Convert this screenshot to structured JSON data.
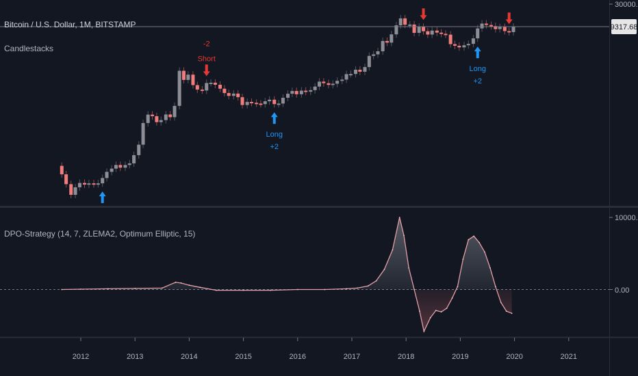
{
  "chart_data": [
    {
      "type": "candlestick",
      "title": "Bitcoin / U.S. Dollar, 1M, BITSTAMP",
      "subtitle": "Candlestacks",
      "scale": "log",
      "y_ticks": [
        {
          "value": 30000,
          "label": "30000.00"
        }
      ],
      "last_price": {
        "value": 9317.68,
        "label": "9317.68"
      },
      "candles": [
        {
          "date": "2011.65",
          "open": 12,
          "close": 8
        },
        {
          "date": "2011.73",
          "open": 8,
          "close": 5
        },
        {
          "date": "2011.82",
          "open": 5,
          "close": 3
        },
        {
          "date": "2011.90",
          "open": 3,
          "close": 4.3
        },
        {
          "date": "2011.98",
          "open": 4.3,
          "close": 5.3
        },
        {
          "date": "2012.07",
          "open": 5.3,
          "close": 4.9
        },
        {
          "date": "2012.15",
          "open": 4.9,
          "close": 5.2
        },
        {
          "date": "2012.24",
          "open": 5.2,
          "close": 5.0
        },
        {
          "date": "2012.32",
          "open": 5.0,
          "close": 5.2
        },
        {
          "date": "2012.40",
          "open": 5.2,
          "close": 6.7
        },
        {
          "date": "2012.48",
          "open": 6.7,
          "close": 9
        },
        {
          "date": "2012.57",
          "open": 9,
          "close": 10.5
        },
        {
          "date": "2012.65",
          "open": 10.5,
          "close": 12.5
        },
        {
          "date": "2012.73",
          "open": 12.5,
          "close": 11
        },
        {
          "date": "2012.82",
          "open": 11,
          "close": 12.5
        },
        {
          "date": "2012.90",
          "open": 12.5,
          "close": 13.5
        },
        {
          "date": "2012.98",
          "open": 13.5,
          "close": 20
        },
        {
          "date": "2013.07",
          "open": 20,
          "close": 33
        },
        {
          "date": "2013.15",
          "open": 33,
          "close": 93
        },
        {
          "date": "2013.24",
          "open": 93,
          "close": 139
        },
        {
          "date": "2013.32",
          "open": 139,
          "close": 129
        },
        {
          "date": "2013.40",
          "open": 129,
          "close": 97
        },
        {
          "date": "2013.48",
          "open": 97,
          "close": 107
        },
        {
          "date": "2013.57",
          "open": 107,
          "close": 140
        },
        {
          "date": "2013.65",
          "open": 140,
          "close": 123
        },
        {
          "date": "2013.73",
          "open": 123,
          "close": 211
        },
        {
          "date": "2013.82",
          "open": 211,
          "close": 1130
        },
        {
          "date": "2013.90",
          "open": 1130,
          "close": 730
        },
        {
          "date": "2013.98",
          "open": 730,
          "close": 940
        },
        {
          "date": "2014.07",
          "open": 940,
          "close": 570
        },
        {
          "date": "2014.15",
          "open": 570,
          "close": 460
        },
        {
          "date": "2014.24",
          "open": 460,
          "close": 440
        },
        {
          "date": "2014.32",
          "open": 440,
          "close": 630
        },
        {
          "date": "2014.40",
          "open": 630,
          "close": 640
        },
        {
          "date": "2014.48",
          "open": 640,
          "close": 580
        },
        {
          "date": "2014.57",
          "open": 580,
          "close": 480
        },
        {
          "date": "2014.65",
          "open": 480,
          "close": 390
        },
        {
          "date": "2014.73",
          "open": 390,
          "close": 340
        },
        {
          "date": "2014.82",
          "open": 340,
          "close": 380
        },
        {
          "date": "2014.90",
          "open": 380,
          "close": 320
        },
        {
          "date": "2014.98",
          "open": 320,
          "close": 220
        },
        {
          "date": "2015.07",
          "open": 220,
          "close": 255
        },
        {
          "date": "2015.15",
          "open": 255,
          "close": 245
        },
        {
          "date": "2015.24",
          "open": 245,
          "close": 236
        },
        {
          "date": "2015.32",
          "open": 236,
          "close": 230
        },
        {
          "date": "2015.40",
          "open": 230,
          "close": 263
        },
        {
          "date": "2015.48",
          "open": 263,
          "close": 284
        },
        {
          "date": "2015.57",
          "open": 284,
          "close": 230
        },
        {
          "date": "2015.65",
          "open": 230,
          "close": 236
        },
        {
          "date": "2015.73",
          "open": 236,
          "close": 311
        },
        {
          "date": "2015.82",
          "open": 311,
          "close": 377
        },
        {
          "date": "2015.90",
          "open": 377,
          "close": 430
        },
        {
          "date": "2015.98",
          "open": 430,
          "close": 368
        },
        {
          "date": "2016.07",
          "open": 368,
          "close": 437
        },
        {
          "date": "2016.15",
          "open": 437,
          "close": 416
        },
        {
          "date": "2016.24",
          "open": 416,
          "close": 448
        },
        {
          "date": "2016.32",
          "open": 448,
          "close": 531
        },
        {
          "date": "2016.40",
          "open": 531,
          "close": 673
        },
        {
          "date": "2016.48",
          "open": 673,
          "close": 624
        },
        {
          "date": "2016.57",
          "open": 624,
          "close": 575
        },
        {
          "date": "2016.65",
          "open": 575,
          "close": 609
        },
        {
          "date": "2016.73",
          "open": 609,
          "close": 700
        },
        {
          "date": "2016.82",
          "open": 700,
          "close": 742
        },
        {
          "date": "2016.90",
          "open": 742,
          "close": 963
        },
        {
          "date": "2016.98",
          "open": 963,
          "close": 970
        },
        {
          "date": "2017.07",
          "open": 970,
          "close": 1190
        },
        {
          "date": "2017.15",
          "open": 1190,
          "close": 1080
        },
        {
          "date": "2017.24",
          "open": 1080,
          "close": 1350
        },
        {
          "date": "2017.32",
          "open": 1350,
          "close": 2300
        },
        {
          "date": "2017.40",
          "open": 2300,
          "close": 2480
        },
        {
          "date": "2017.48",
          "open": 2480,
          "close": 2870
        },
        {
          "date": "2017.57",
          "open": 2870,
          "close": 4700
        },
        {
          "date": "2017.65",
          "open": 4700,
          "close": 4340
        },
        {
          "date": "2017.73",
          "open": 4340,
          "close": 6450
        },
        {
          "date": "2017.82",
          "open": 6450,
          "close": 9950
        },
        {
          "date": "2017.90",
          "open": 9950,
          "close": 13850
        },
        {
          "date": "2017.98",
          "open": 13850,
          "close": 10230
        },
        {
          "date": "2018.07",
          "open": 10230,
          "close": 10330
        },
        {
          "date": "2018.15",
          "open": 10330,
          "close": 6930
        },
        {
          "date": "2018.24",
          "open": 6930,
          "close": 9240
        },
        {
          "date": "2018.32",
          "open": 9240,
          "close": 7490
        },
        {
          "date": "2018.40",
          "open": 7490,
          "close": 6390
        },
        {
          "date": "2018.48",
          "open": 6390,
          "close": 7730
        },
        {
          "date": "2018.57",
          "open": 7730,
          "close": 7010
        },
        {
          "date": "2018.65",
          "open": 7010,
          "close": 6630
        },
        {
          "date": "2018.73",
          "open": 6630,
          "close": 6370
        },
        {
          "date": "2018.82",
          "open": 6370,
          "close": 4040
        },
        {
          "date": "2018.90",
          "open": 4040,
          "close": 3740
        },
        {
          "date": "2018.98",
          "open": 3740,
          "close": 3460
        },
        {
          "date": "2019.07",
          "open": 3460,
          "close": 3830
        },
        {
          "date": "2019.15",
          "open": 3830,
          "close": 4100
        },
        {
          "date": "2019.24",
          "open": 4100,
          "close": 5320
        },
        {
          "date": "2019.32",
          "open": 5320,
          "close": 8570
        },
        {
          "date": "2019.40",
          "open": 8570,
          "close": 10800
        },
        {
          "date": "2019.48",
          "open": 10800,
          "close": 10080
        },
        {
          "date": "2019.57",
          "open": 10080,
          "close": 9590
        },
        {
          "date": "2019.65",
          "open": 9590,
          "close": 8300
        },
        {
          "date": "2019.73",
          "open": 8300,
          "close": 9150
        },
        {
          "date": "2019.82",
          "open": 9150,
          "close": 7550
        },
        {
          "date": "2019.90",
          "open": 7550,
          "close": 7190
        },
        {
          "date": "2019.98",
          "open": 7190,
          "close": 9317.68
        }
      ],
      "signals": [
        {
          "date": "2012.40",
          "kind": "long",
          "text": ""
        },
        {
          "date": "2014.32",
          "kind": "short",
          "text": "-2\nShort"
        },
        {
          "date": "2015.57",
          "kind": "long",
          "text": "Long\n+2"
        },
        {
          "date": "2018.32",
          "kind": "short",
          "text": ""
        },
        {
          "date": "2019.32",
          "kind": "long",
          "text": "Long\n+2"
        },
        {
          "date": "2019.90",
          "kind": "short",
          "text": ""
        }
      ]
    },
    {
      "type": "area",
      "title": "DPO-Strategy (14, 7, ZLEMA2, Optimum Elliptic, 15)",
      "y_ticks": [
        {
          "value": 10000,
          "label": "10000.00"
        },
        {
          "value": 0,
          "label": "0.00"
        }
      ],
      "zero_line": true,
      "x": [
        "2011.65",
        "2012.0",
        "2012.5",
        "2013.0",
        "2013.5",
        "2013.75",
        "2013.85",
        "2014.0",
        "2014.2",
        "2014.5",
        "2015.0",
        "2015.5",
        "2016.0",
        "2016.5",
        "2016.9",
        "2017.1",
        "2017.3",
        "2017.45",
        "2017.6",
        "2017.75",
        "2017.88",
        "2017.96",
        "2018.05",
        "2018.15",
        "2018.25",
        "2018.33",
        "2018.45",
        "2018.55",
        "2018.65",
        "2018.75",
        "2018.85",
        "2018.95",
        "2019.05",
        "2019.15",
        "2019.25",
        "2019.35",
        "2019.45",
        "2019.55",
        "2019.65",
        "2019.75",
        "2019.85",
        "2019.95"
      ],
      "values": [
        0,
        50,
        100,
        150,
        200,
        1000,
        900,
        600,
        300,
        -100,
        -100,
        -100,
        0,
        0,
        100,
        200,
        500,
        1200,
        2800,
        5500,
        10000,
        7500,
        3000,
        0,
        -3000,
        -5800,
        -3900,
        -2900,
        -3100,
        -2600,
        -1200,
        400,
        4200,
        6900,
        7400,
        6500,
        5200,
        3000,
        400,
        -1800,
        -3000,
        -3300
      ]
    }
  ],
  "x_axis": {
    "ticks": [
      "2012",
      "2013",
      "2014",
      "2015",
      "2016",
      "2017",
      "2018",
      "2019",
      "2020",
      "2021"
    ]
  },
  "colors": {
    "background": "#131722",
    "grid": "#2a2e39",
    "up": "#8d8d95",
    "down": "#f07c7c",
    "long_signal": "#2196f3",
    "short_signal": "#e53935",
    "text": "#b2b5be"
  }
}
